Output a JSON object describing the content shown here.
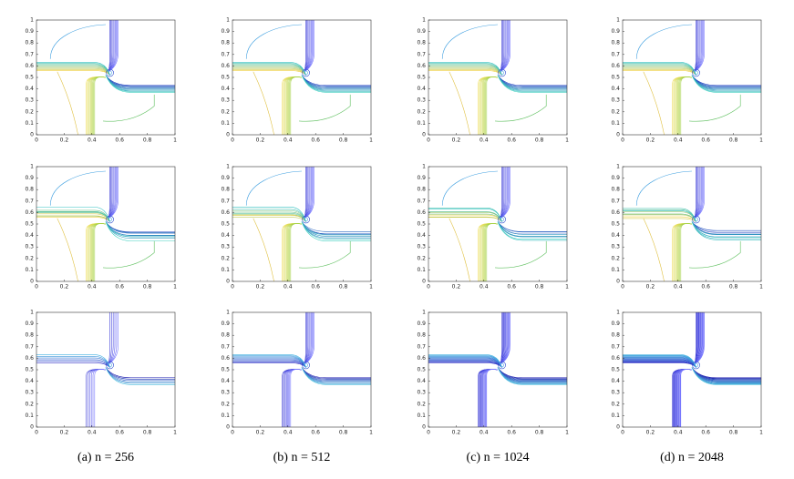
{
  "figure": {
    "xticks": [
      0,
      0.2,
      0.4,
      0.6,
      0.8,
      1
    ],
    "yticks": [
      0,
      0.1,
      0.2,
      0.3,
      0.4,
      0.5,
      0.6,
      0.7,
      0.8,
      0.9,
      1
    ],
    "xlim": [
      0,
      1
    ],
    "ylim": [
      0,
      1
    ],
    "captions": [
      "(a) n = 256",
      "(b) n = 512",
      "(c) n = 1024",
      "(d) n = 2048"
    ]
  }
}
